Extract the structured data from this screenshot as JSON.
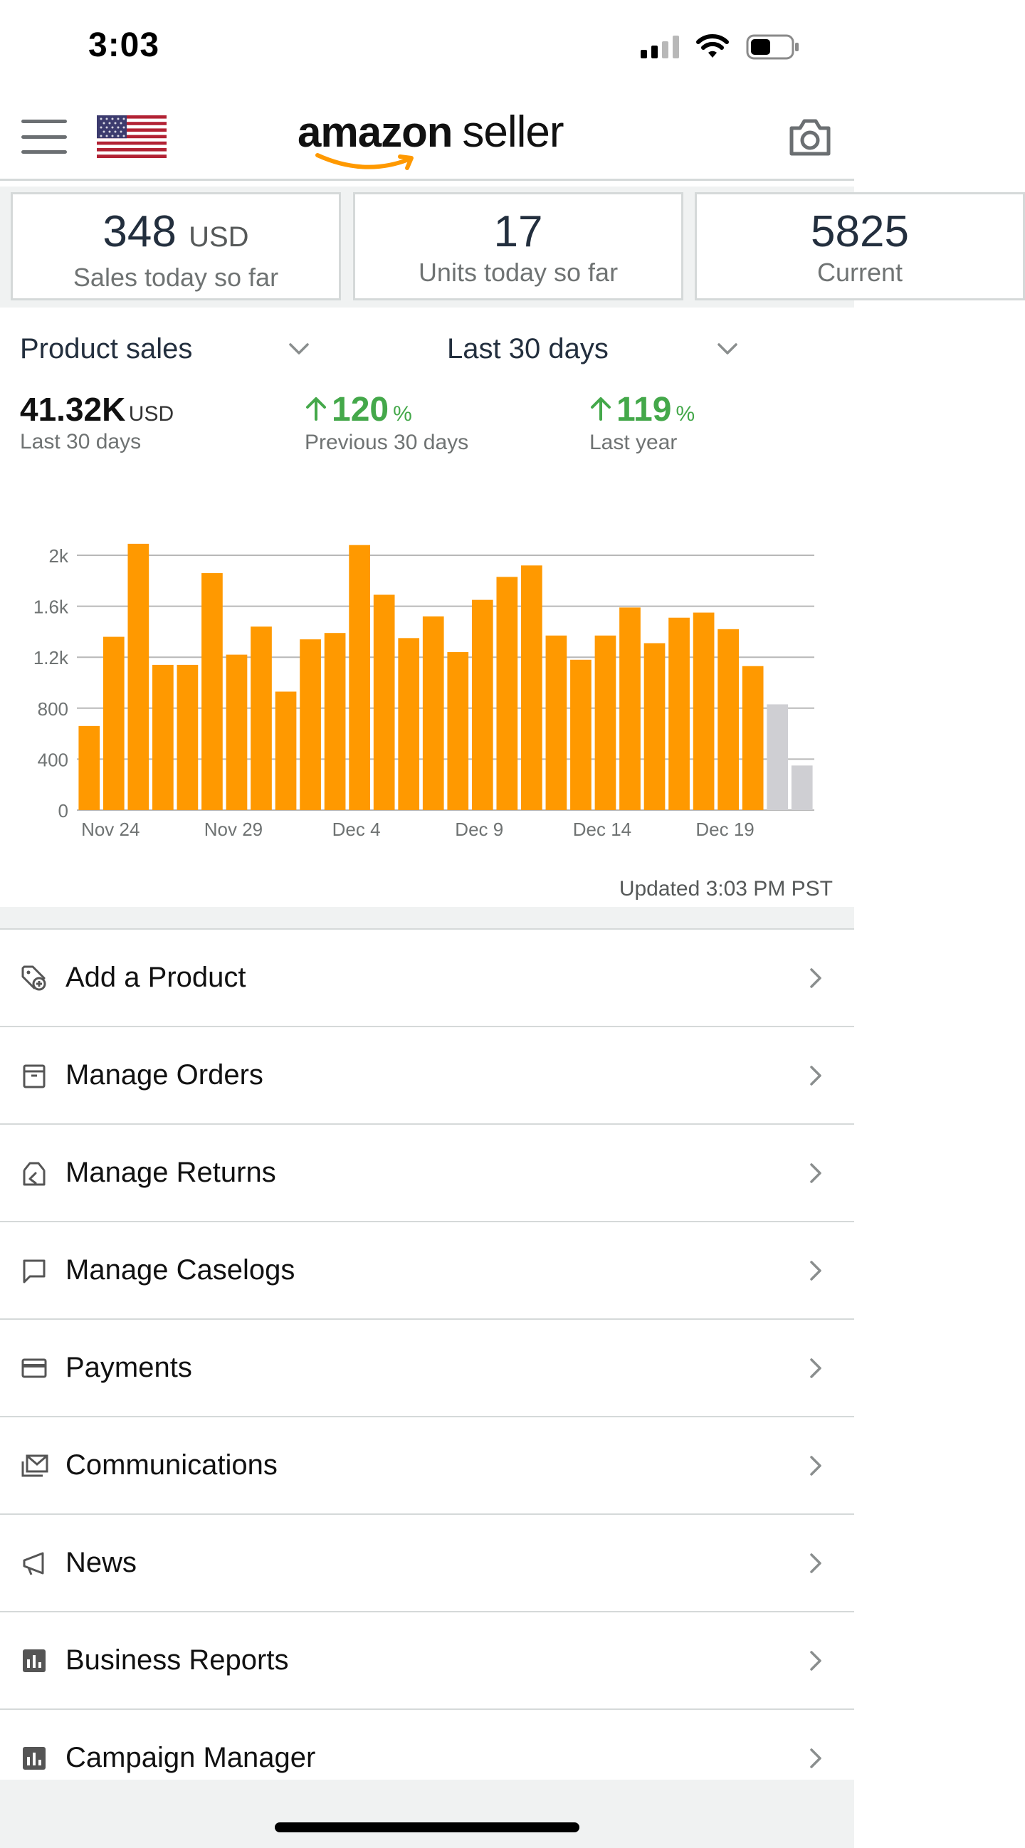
{
  "status_bar": {
    "time": "3:03",
    "battery_level": 0.5
  },
  "header": {
    "logo_primary": "amazon",
    "logo_secondary": "seller",
    "flag": "us-flag-icon",
    "camera": "camera-icon",
    "menu": "hamburger-icon"
  },
  "metrics": [
    {
      "value": "348",
      "unit": "USD",
      "label": "Sales today so far"
    },
    {
      "value": "17",
      "unit": "",
      "label": "Units today so far"
    },
    {
      "value": "5825",
      "unit": "",
      "label": "Current"
    }
  ],
  "sales": {
    "metric_select": "Product sales",
    "range_select": "Last 30 days",
    "total": {
      "value": "41.32K",
      "unit": "USD",
      "label": "Last 30 days"
    },
    "prev_change": {
      "value": "120",
      "unit": "%",
      "label": "Previous 30 days"
    },
    "year_change": {
      "value": "119",
      "unit": "%",
      "label": "Last year"
    },
    "updated": "Updated 3:03 PM PST"
  },
  "chart_data": {
    "type": "bar",
    "ylim": [
      0,
      2000
    ],
    "yticks": [
      "0",
      "400",
      "800",
      "1.2k",
      "1.6k",
      "2k"
    ],
    "ytick_values": [
      0,
      400,
      800,
      1200,
      1600,
      2000
    ],
    "xtick_labels": [
      "Nov 24",
      "Nov 29",
      "Dec 4",
      "Dec 9",
      "Dec 14",
      "Dec 19"
    ],
    "xtick_indices": [
      0,
      5,
      10,
      15,
      20,
      25
    ],
    "values": [
      660,
      1360,
      2090,
      1140,
      1140,
      1860,
      1220,
      1440,
      930,
      1340,
      1390,
      2080,
      1690,
      1350,
      1520,
      1240,
      1650,
      1830,
      1920,
      1370,
      1180,
      1370,
      1590,
      1310,
      1510,
      1550,
      1420,
      1130,
      830,
      350
    ],
    "colors": {
      "bar": "#ff9900",
      "partial": "#cfcfd3",
      "grid": "#b8b8b8",
      "axis_text": "#6f7373"
    },
    "partial_indices": [
      28,
      29
    ],
    "grid": true
  },
  "menu": [
    {
      "label": "Add a Product",
      "icon": "tag-add-icon"
    },
    {
      "label": "Manage Orders",
      "icon": "box-icon"
    },
    {
      "label": "Manage Returns",
      "icon": "return-box-icon"
    },
    {
      "label": "Manage Caselogs",
      "icon": "speech-bubble-icon"
    },
    {
      "label": "Payments",
      "icon": "credit-card-icon"
    },
    {
      "label": "Communications",
      "icon": "envelope-icon"
    },
    {
      "label": "News",
      "icon": "megaphone-icon"
    },
    {
      "label": "Business Reports",
      "icon": "bar-report-icon"
    },
    {
      "label": "Campaign Manager",
      "icon": "bar-report-icon"
    }
  ]
}
